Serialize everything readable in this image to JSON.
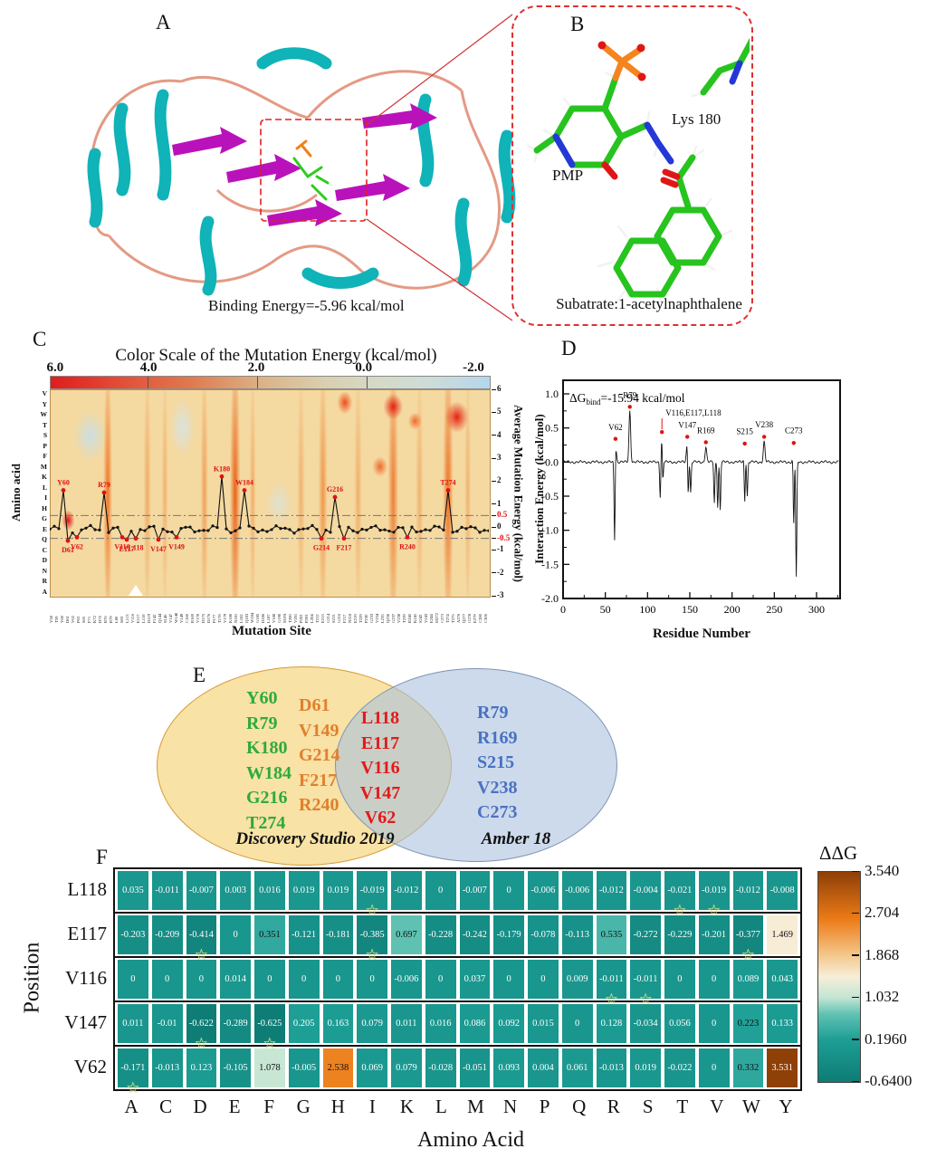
{
  "panels": {
    "a": "A",
    "b": "B",
    "c": "C",
    "d": "D",
    "e": "E",
    "f": "F"
  },
  "panel_a": {
    "caption": "Binding Energy=-5.96 kcal/mol"
  },
  "panel_b": {
    "lys": "Lys 180",
    "pmp": "PMP",
    "substrate": "Subatrate:1-acetylnaphthalene"
  },
  "chart_data": [
    {
      "panel": "C",
      "type": "heatmap",
      "title": "Color Scale of the Mutation Energy (kcal/mol)",
      "colorbar_ticks": [
        "6.0",
        "4.0",
        "2.0",
        "0.0",
        "-2.0"
      ],
      "colorbar_range": [
        6.0,
        -2.0
      ],
      "ylabel_left": "Amino acid",
      "ylabel_right": "Average Mutation Energy (kcal/mol)",
      "xlabel": "Mutation Site",
      "amino_acids_top_to_bottom": [
        "V",
        "Y",
        "W",
        "T",
        "S",
        "P",
        "F",
        "M",
        "K",
        "L",
        "I",
        "H",
        "G",
        "E",
        "Q",
        "C",
        "D",
        "N",
        "R",
        "A"
      ],
      "right_axis_ticks": [
        6,
        5,
        4,
        3,
        2,
        1,
        0.5,
        0,
        -0.5,
        -1,
        -2,
        -3
      ],
      "threshold_lines": [
        0.5,
        -0.5
      ],
      "line_anchors": [
        {
          "label": "Y60",
          "f": 0.027,
          "v": 1.6,
          "dir": "up"
        },
        {
          "label": "D61",
          "f": 0.041,
          "v": -0.6,
          "dir": "down"
        },
        {
          "label": "V62",
          "f": 0.062,
          "v": -0.45,
          "dir": "down"
        },
        {
          "label": "R79",
          "f": 0.124,
          "v": 1.5,
          "dir": "up"
        },
        {
          "label": "V116",
          "f": 0.16,
          "v": -0.45,
          "dir": "down"
        },
        {
          "label": "E117",
          "f": 0.175,
          "v": -0.55,
          "dir": "down"
        },
        {
          "label": "L118",
          "f": 0.195,
          "v": -0.5,
          "dir": "down"
        },
        {
          "label": "V147",
          "f": 0.252,
          "v": -0.55,
          "dir": "down"
        },
        {
          "label": "V149",
          "f": 0.289,
          "v": -0.45,
          "dir": "down"
        },
        {
          "label": "K180",
          "f": 0.396,
          "v": 2.2,
          "dir": "up"
        },
        {
          "label": "W184",
          "f": 0.447,
          "v": 1.6,
          "dir": "up"
        },
        {
          "label": "G214",
          "f": 0.623,
          "v": -0.5,
          "dir": "down"
        },
        {
          "label": "G216",
          "f": 0.645,
          "v": 1.3,
          "dir": "up"
        },
        {
          "label": "F217",
          "f": 0.666,
          "v": -0.5,
          "dir": "down"
        },
        {
          "label": "R240",
          "f": 0.819,
          "v": -0.45,
          "dir": "down"
        },
        {
          "label": "T274",
          "f": 0.903,
          "v": 1.6,
          "dir": "up"
        }
      ],
      "mutation_site_ticks": [
        "Y58",
        "T59",
        "Y60",
        "D61",
        "V62",
        "P63",
        "S65",
        "F71",
        "K72",
        "H75",
        "R76",
        "R79",
        "L80",
        "S83",
        "L113",
        "V116",
        "E117",
        "L118",
        "D119",
        "F142",
        "Q144",
        "S146",
        "V147",
        "W148",
        "V149",
        "C160",
        "R169",
        "V170",
        "D175",
        "D176",
        "P177",
        "T178",
        "V179",
        "K180",
        "N181",
        "L182",
        "Q183",
        "W184",
        "G185",
        "D186",
        "L187",
        "V188",
        "G190",
        "M191",
        "T200",
        "V201",
        "P202",
        "P203",
        "L204",
        "T212",
        "E213",
        "G214",
        "S215",
        "G216",
        "F217",
        "N218",
        "E219",
        "T229",
        "P230",
        "G233",
        "V234",
        "L235",
        "Q236",
        "G237",
        "V238",
        "T239",
        "R240",
        "K241",
        "S242",
        "V243",
        "E244",
        "M272",
        "C273",
        "T274",
        "T275",
        "A276",
        "Q277",
        "G278",
        "E279",
        "C280",
        "C306"
      ]
    },
    {
      "panel": "D",
      "type": "line",
      "annotation": {
        "prefix": "ΔG",
        "sub": "bind",
        "rest": "=-15.94 kcal/mol"
      },
      "xlabel": "Residue Number",
      "ylabel": "Interaction Energy (kcal/mol)",
      "x_ticks": [
        0,
        50,
        100,
        150,
        200,
        250,
        300
      ],
      "y_ticks": [
        "1.0",
        "0.5",
        "0.0",
        "-0.5",
        "-1.0",
        "-1.5",
        "-2.0"
      ],
      "xlim": [
        0,
        328
      ],
      "ylim": [
        -2.0,
        1.2
      ],
      "peaks": [
        {
          "label": "V62",
          "x": 62,
          "peak": 0.28,
          "dot": 0.34,
          "label_v": 0.47,
          "lead": false
        },
        {
          "label": "R79",
          "x": 79,
          "peak": 0.75,
          "dot": 0.81,
          "label_v": 0.94,
          "lead": false
        },
        {
          "label": "V116,E117,L118",
          "x": 117,
          "peak": 0.38,
          "dot": 0.44,
          "label_v": 0.68,
          "lead": true
        },
        {
          "label": "V147",
          "x": 147,
          "peak": 0.3,
          "dot": 0.37,
          "label_v": 0.5,
          "lead": false
        },
        {
          "label": "R169",
          "x": 169,
          "peak": 0.22,
          "dot": 0.29,
          "label_v": 0.42,
          "lead": false
        },
        {
          "label": "S215",
          "x": 215,
          "peak": 0.18,
          "dot": 0.27,
          "label_v": 0.41,
          "lead": false
        },
        {
          "label": "V238",
          "x": 238,
          "peak": 0.3,
          "dot": 0.37,
          "label_v": 0.51,
          "lead": false
        },
        {
          "label": "C273",
          "x": 273,
          "peak": 0.2,
          "dot": 0.28,
          "label_v": 0.42,
          "lead": false
        }
      ],
      "minima": [
        {
          "x": 61,
          "y": -1.3
        },
        {
          "x": 115,
          "y": -0.55
        },
        {
          "x": 118,
          "y": -0.45
        },
        {
          "x": 148,
          "y": -0.6
        },
        {
          "x": 151,
          "y": -0.45
        },
        {
          "x": 179,
          "y": -0.6
        },
        {
          "x": 183,
          "y": -0.65
        },
        {
          "x": 186,
          "y": -0.7
        },
        {
          "x": 215,
          "y": -0.75
        },
        {
          "x": 218,
          "y": -0.5
        },
        {
          "x": 273,
          "y": -1.1
        },
        {
          "x": 276,
          "y": -1.7
        }
      ]
    },
    {
      "panel": "F",
      "type": "heatmap",
      "ylabel": "Position",
      "xlabel": "Amino Acid",
      "rows": [
        "L118",
        "E117",
        "V116",
        "V147",
        "V62"
      ],
      "cols": [
        "A",
        "C",
        "D",
        "E",
        "F",
        "G",
        "H",
        "I",
        "K",
        "L",
        "M",
        "N",
        "P",
        "Q",
        "R",
        "S",
        "T",
        "V",
        "W",
        "Y"
      ],
      "values": [
        [
          "0.035",
          "-0.011",
          "-0.007",
          "0.003",
          "0.016",
          "0.019",
          "0.019",
          "-0.019",
          "-0.012",
          "0",
          "-0.007",
          "0",
          "-0.006",
          "-0.006",
          "-0.012",
          "-0.004",
          "-0.021",
          "-0.019",
          "-0.012",
          "-0.008"
        ],
        [
          "-0.203",
          "-0.209",
          "-0.414",
          "0",
          "0.351",
          "-0.121",
          "-0.181",
          "-0.385",
          "0.697",
          "-0.228",
          "-0.242",
          "-0.179",
          "-0.078",
          "-0.113",
          "0.535",
          "-0.272",
          "-0.229",
          "-0.201",
          "-0.377",
          "1.469"
        ],
        [
          "0",
          "0",
          "0",
          "0.014",
          "0",
          "0",
          "0",
          "0",
          "-0.006",
          "0",
          "0.037",
          "0",
          "0",
          "0.009",
          "-0.011",
          "-0.011",
          "0",
          "0",
          "0.089",
          "0.043"
        ],
        [
          "0.011",
          "-0.01",
          "-0.622",
          "-0.289",
          "-0.625",
          "0.205",
          "0.163",
          "0.079",
          "0.011",
          "0.016",
          "0.086",
          "0.092",
          "0.015",
          "0",
          "0.128",
          "-0.034",
          "0.056",
          "0",
          "0.223",
          "0.133"
        ],
        [
          "-0.171",
          "-0.013",
          "0.123",
          "-0.105",
          "1.078",
          "-0.005",
          "2.538",
          "0.069",
          "0.079",
          "-0.028",
          "-0.051",
          "0.093",
          "0.004",
          "0.061",
          "-0.013",
          "0.019",
          "-0.022",
          "0",
          "0.332",
          "3.531"
        ]
      ],
      "stars": [
        [
          0,
          7
        ],
        [
          0,
          16
        ],
        [
          0,
          17
        ],
        [
          1,
          2
        ],
        [
          1,
          7
        ],
        [
          1,
          18
        ],
        [
          2,
          14
        ],
        [
          2,
          15
        ],
        [
          3,
          2
        ],
        [
          3,
          4
        ],
        [
          4,
          0
        ]
      ],
      "colorbar": {
        "title": "ΔΔG",
        "ticks": [
          "3.540",
          "2.704",
          "1.868",
          "1.032",
          "0.1960",
          "-0.6400"
        ],
        "min": -0.64,
        "max": 3.54
      },
      "colormap_stops": [
        [
          -0.64,
          "#0e7c75"
        ],
        [
          0.196,
          "#1d9e95"
        ],
        [
          0.7,
          "#5fc1b2"
        ],
        [
          1.032,
          "#c2e5d3"
        ],
        [
          1.45,
          "#f7eed9"
        ],
        [
          1.868,
          "#f4c98e"
        ],
        [
          2.6,
          "#ec7b17"
        ],
        [
          3.54,
          "#8e3f07"
        ]
      ]
    },
    {
      "panel": "E",
      "type": "venn",
      "left_label": "Discovery Studio 2019",
      "right_label": "Amber 18",
      "left_only_green": [
        "Y60",
        "R79",
        "K180",
        "W184",
        "G216",
        "T274"
      ],
      "left_only_orange": [
        "D61",
        "V149",
        "G214",
        "F217",
        "R240"
      ],
      "intersection_red": [
        "L118",
        "E117",
        "V116",
        "V147",
        "V62"
      ],
      "right_only_blue": [
        "R79",
        "R169",
        "S215",
        "V238",
        "C273"
      ],
      "colors": {
        "green": "#2eab3a",
        "orange": "#e0802e",
        "red": "#e31a1a",
        "blue": "#4a72c2",
        "left_fill": "#f8e2a6",
        "left_border": "#d89a35",
        "right_fill": "rgba(170,193,222,0.6)",
        "right_border": "#7e95b5"
      }
    }
  ]
}
